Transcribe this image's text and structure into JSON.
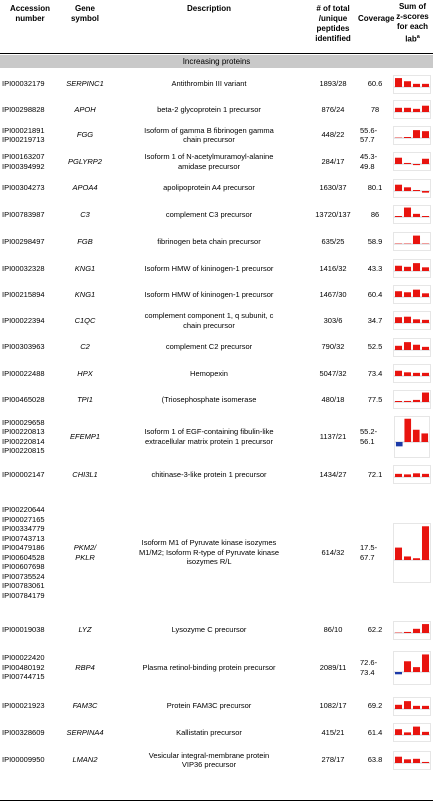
{
  "headers": {
    "accession": [
      "Accession",
      "number"
    ],
    "gene": [
      "Gene",
      "symbol"
    ],
    "description": [
      "Description"
    ],
    "peptides": [
      "# of total",
      "/unique",
      "peptides",
      "identified"
    ],
    "coverage": [
      "Coverage"
    ],
    "zscore": [
      "Sum of",
      "z-scores",
      "for each",
      "lab"
    ],
    "zscore_sup": "a"
  },
  "section_label": "Increasing proteins",
  "colors": {
    "bar": "#e8140f",
    "neg_bar": "#1c3aa8",
    "axis": "#9a9aa8",
    "section_bg": "#c9c9c9"
  },
  "rows": [
    {
      "acc": [
        "IPI00032179"
      ],
      "gene": "SERPINC1",
      "desc": [
        "Antithrombin III variant"
      ],
      "pep": "1893/28",
      "cov": "60.6",
      "z": [
        0.85,
        0.55,
        0.3,
        0.3
      ]
    },
    {
      "acc": [
        "IPI00298828"
      ],
      "gene": "APOH",
      "desc": [
        "beta-2 glycoprotein 1 precursor"
      ],
      "pep": "876/24",
      "cov": "78",
      "z": [
        0.4,
        0.4,
        0.3,
        0.6
      ]
    },
    {
      "acc": [
        "IPI00021891",
        "IPI00219713"
      ],
      "gene": "FGG",
      "desc": [
        "Isoform of gamma B fibrinogen gamma",
        "chain precursor"
      ],
      "pep": "448/22",
      "cov": "55.6-57.7",
      "z": [
        0,
        0.05,
        0.75,
        0.65
      ]
    },
    {
      "acc": [
        "IPI00163207",
        "IPI00394992"
      ],
      "gene": "PGLYRP2",
      "desc": [
        "Isoform 1 of N-acetylmuramoyl-alanine",
        "amidase precursor"
      ],
      "pep": "284/17",
      "cov": "45.3-49.8",
      "z": [
        0.6,
        0.1,
        -0.1,
        0.5
      ]
    },
    {
      "acc": [
        "IPI00304273"
      ],
      "gene": "APOA4",
      "desc": [
        "apolipoprotein A4 precursor"
      ],
      "pep": "1630/37",
      "cov": "80.1",
      "z": [
        0.6,
        0.35,
        0.05,
        -0.15
      ]
    },
    {
      "acc": [
        "IPI00783987"
      ],
      "gene": "C3",
      "desc": [
        "complement C3 precursor"
      ],
      "pep": "13720/137",
      "cov": "86",
      "z": [
        0.05,
        0.9,
        0.3,
        0.05
      ]
    },
    {
      "acc": [
        "IPI00298497"
      ],
      "gene": "FGB",
      "desc": [
        "fibrinogen beta chain precursor"
      ],
      "pep": "635/25",
      "cov": "58.9",
      "z": [
        0,
        0,
        0.8,
        0
      ]
    },
    {
      "acc": [
        "IPI00032328"
      ],
      "gene": "KNG1",
      "desc": [
        "Isoform HMW of kininogen-1 precursor"
      ],
      "pep": "1416/32",
      "cov": "43.3",
      "z": [
        0.5,
        0.4,
        0.75,
        0.35
      ]
    },
    {
      "acc": [
        "IPI00215894"
      ],
      "gene": "KNG1",
      "desc": [
        "Isoform HMW of kininogen-1 precursor"
      ],
      "pep": "1467/30",
      "cov": "60.4",
      "z": [
        0.55,
        0.45,
        0.7,
        0.35
      ]
    },
    {
      "acc": [
        "IPI00022394"
      ],
      "gene": "C1QC",
      "desc": [
        "complement component 1, q subunit, c",
        "chain precursor"
      ],
      "pep": "303/6",
      "cov": "34.7",
      "z": [
        0.55,
        0.6,
        0.35,
        0.3
      ]
    },
    {
      "acc": [
        "IPI00303963"
      ],
      "gene": "C2",
      "desc": [
        "complement C2 precursor"
      ],
      "pep": "790/32",
      "cov": "52.5",
      "z": [
        0.4,
        0.75,
        0.5,
        0.3
      ]
    },
    {
      "acc": [
        "IPI00022488"
      ],
      "gene": "HPX",
      "desc": [
        "Hemopexin"
      ],
      "pep": "5047/32",
      "cov": "73.4",
      "z": [
        0.5,
        0.35,
        0.3,
        0.3
      ]
    },
    {
      "acc": [
        "IPI00465028"
      ],
      "gene": "TPI1",
      "desc": [
        "(Triosephosphate isomerase"
      ],
      "pep": "480/18",
      "cov": "77.5",
      "z": [
        0.05,
        0.1,
        0.2,
        0.9
      ]
    },
    {
      "acc": [
        "IPI00029658",
        "IPI00220813",
        "IPI00220814",
        "IPI00220815"
      ],
      "gene": "EFEMP1",
      "desc": [
        "Isoform 1 of EGF-containing fibulin-like",
        "extracellular matrix protein 1 precursor"
      ],
      "pep": "1137/21",
      "cov": "55.2-56.1",
      "z": [
        -0.15,
        0.95,
        0.5,
        0.35
      ]
    },
    {
      "acc": [
        "IPI00002147"
      ],
      "gene": "CHI3L1",
      "desc": [
        "chitinase-3-like protein 1 precursor"
      ],
      "pep": "1434/27",
      "cov": "72.1",
      "z": [
        0.3,
        0.25,
        0.35,
        0.3
      ]
    },
    {
      "acc": [
        "IPI00220644",
        "IPI00027165",
        "IPI00334779",
        "IPI00743713",
        "IPI00479186",
        "IPI00604528",
        "IPI00607698",
        "IPI00735524",
        "IPI00783061",
        "IPI00784179"
      ],
      "gene": "PKM2/PKLR",
      "desc": [
        "Isoform M1 of Pyruvate kinase isozymes",
        "M1/M2; Isoform R-type of Pyruvate kinase",
        "isozymes R/L"
      ],
      "pep": "614/32",
      "cov": "17.5-67.7",
      "z": [
        0.35,
        0.1,
        0.05,
        0.95
      ]
    },
    {
      "acc": [
        "IPI00019038"
      ],
      "gene": "LYZ",
      "desc": [
        "Lysozyme C precursor"
      ],
      "pep": "86/10",
      "cov": "62.2",
      "z": [
        0,
        0.1,
        0.4,
        0.85
      ]
    },
    {
      "acc": [
        "IPI00022420",
        "IPI00480192",
        "IPI00744715"
      ],
      "gene": "RBP4",
      "desc": [
        "Plasma retinol-binding protein precursor"
      ],
      "pep": "2089/11",
      "cov": "72.6-73.4",
      "z": [
        -0.1,
        0.55,
        0.25,
        0.9
      ]
    },
    {
      "acc": [
        "IPI00021923"
      ],
      "gene": "FAM3C",
      "desc": [
        "Protein FAM3C precursor"
      ],
      "pep": "1082/17",
      "cov": "69.2",
      "z": [
        0.4,
        0.75,
        0.3,
        0.3
      ]
    },
    {
      "acc": [
        "IPI00328609"
      ],
      "gene": "SERPINA4",
      "desc": [
        "Kallistatin precursor"
      ],
      "pep": "415/21",
      "cov": "61.4",
      "z": [
        0.55,
        0.25,
        0.8,
        0.3
      ]
    },
    {
      "acc": [
        "IPI00009950"
      ],
      "gene": "LMAN2",
      "desc": [
        "Vesicular integral-membrane protein",
        "VIP36 precursor"
      ],
      "pep": "278/17",
      "cov": "63.8",
      "z": [
        0.6,
        0.35,
        0.4,
        0.1
      ]
    }
  ]
}
